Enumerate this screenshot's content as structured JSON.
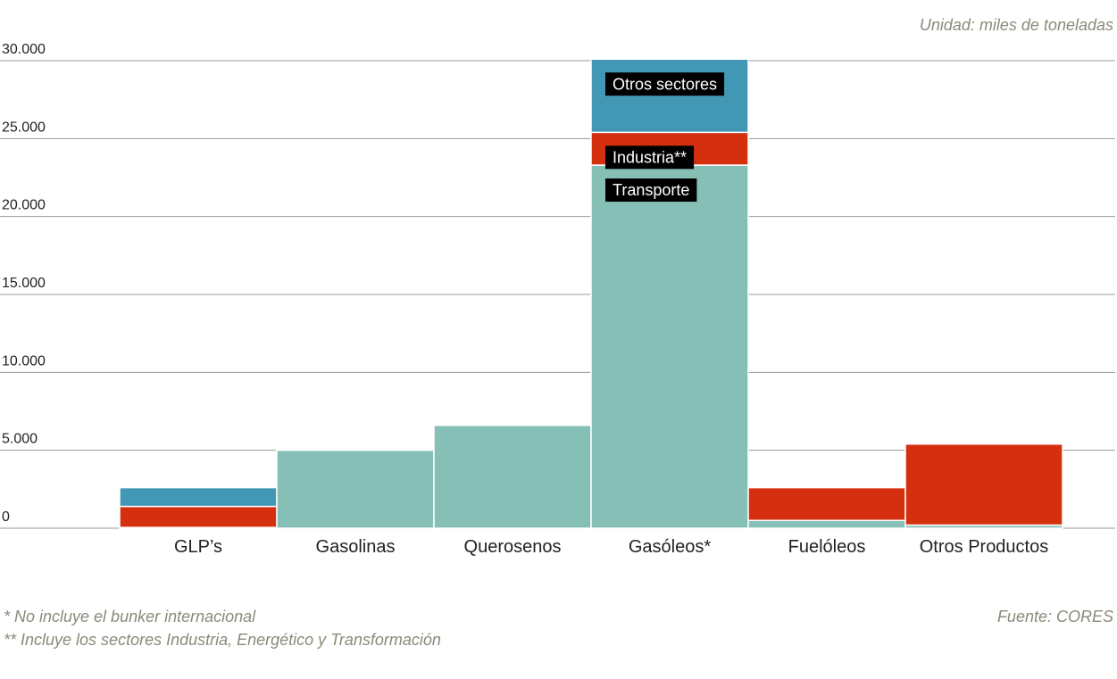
{
  "unit_note": "Unidad: miles de toneladas",
  "footnotes": [
    "* No incluye el bunker internacional",
    "** Incluye los sectores Industria, Energético y Transformación"
  ],
  "source": "Fuente: CORES",
  "colors": {
    "Transporte": "#85bfb6",
    "Industria": "#d4300f",
    "Otros": "#4297b4",
    "grid": "#999999",
    "label_bg": "#000000"
  },
  "chart_data": {
    "type": "bar",
    "stacked": true,
    "title": "",
    "xlabel": "",
    "ylabel": "",
    "ylim": [
      0,
      30000
    ],
    "yticks": [
      0,
      5000,
      10000,
      15000,
      20000,
      25000,
      30000
    ],
    "ytick_labels": [
      "0",
      "5.000",
      "10.000",
      "15.000",
      "20.000",
      "25.000",
      "30.000"
    ],
    "categories": [
      "GLP’s",
      "Gasolinas",
      "Querosenos",
      "Gasóleos*",
      "Fuelóleos",
      "Otros Productos"
    ],
    "series": [
      {
        "name": "Transporte",
        "values": [
          50,
          5000,
          6600,
          23300,
          500,
          200
        ]
      },
      {
        "name": "Industria",
        "values": [
          1350,
          0,
          0,
          2100,
          2100,
          5200
        ]
      },
      {
        "name": "Otros",
        "values": [
          1200,
          0,
          0,
          4700,
          0,
          0
        ]
      }
    ],
    "segment_labels": [
      {
        "category": "Gasóleos*",
        "series": "Otros",
        "text": "Otros sectores"
      },
      {
        "category": "Gasóleos*",
        "series": "Industria",
        "text": "Industria**"
      },
      {
        "category": "Gasóleos*",
        "series": "Transporte",
        "text": "Transporte"
      }
    ]
  }
}
